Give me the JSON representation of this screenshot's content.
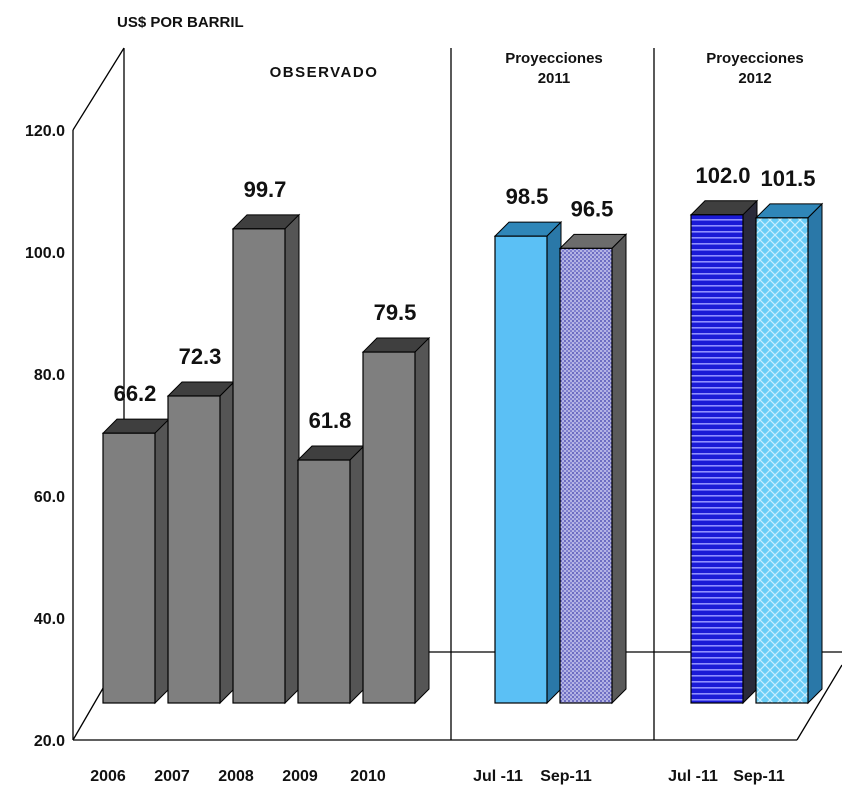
{
  "chart_data": {
    "type": "bar",
    "style": "3d",
    "ylabel": "US$ POR BARRIL",
    "ylim": [
      20,
      120
    ],
    "yticks": [
      "20.0",
      "40.0",
      "60.0",
      "80.0",
      "100.0",
      "120.0"
    ],
    "grid": false,
    "groups": [
      {
        "label": "OBSERVADO",
        "label_lines": [
          "OBSERVADO"
        ]
      },
      {
        "label": "Proyecciones 2011",
        "label_lines": [
          "Proyecciones",
          "2011"
        ]
      },
      {
        "label": "Proyecciones 2012",
        "label_lines": [
          "Proyecciones",
          "2012"
        ]
      }
    ],
    "bars": [
      {
        "category": "2006",
        "value": 66.2,
        "label": "66.2",
        "group": 0,
        "fill": "solid",
        "color": "#7f7f7f",
        "top": "#3f3f3f",
        "side": "#555555"
      },
      {
        "category": "2007",
        "value": 72.3,
        "label": "72.3",
        "group": 0,
        "fill": "solid",
        "color": "#7f7f7f",
        "top": "#3f3f3f",
        "side": "#555555"
      },
      {
        "category": "2008",
        "value": 99.7,
        "label": "99.7",
        "group": 0,
        "fill": "solid",
        "color": "#7f7f7f",
        "top": "#3f3f3f",
        "side": "#555555"
      },
      {
        "category": "2009",
        "value": 61.8,
        "label": "61.8",
        "group": 0,
        "fill": "solid",
        "color": "#7f7f7f",
        "top": "#3f3f3f",
        "side": "#555555"
      },
      {
        "category": "2010",
        "value": 79.5,
        "label": "79.5",
        "group": 0,
        "fill": "solid",
        "color": "#7f7f7f",
        "top": "#3f3f3f",
        "side": "#555555"
      },
      {
        "category": "Jul -11",
        "value": 98.5,
        "label": "98.5",
        "group": 1,
        "fill": "solid",
        "color": "#5bc0f5",
        "top": "#2f86b8",
        "side": "#2a78a8"
      },
      {
        "category": "Sep-11",
        "value": 96.5,
        "label": "96.5",
        "group": 1,
        "fill": "dots",
        "color": "#a8a8dc",
        "top": "#6c6c6c",
        "side": "#5a5a5a"
      },
      {
        "category": "Jul -11",
        "value": 102.0,
        "label": "102.0",
        "group": 2,
        "fill": "hlines",
        "color": "#1515c8",
        "top": "#3f3f3f",
        "side": "#2a2a3a"
      },
      {
        "category": "Sep-11",
        "value": 101.5,
        "label": "101.5",
        "group": 2,
        "fill": "lattice",
        "color": "#6fd0f8",
        "top": "#2f86b8",
        "side": "#2a78a8"
      }
    ]
  }
}
